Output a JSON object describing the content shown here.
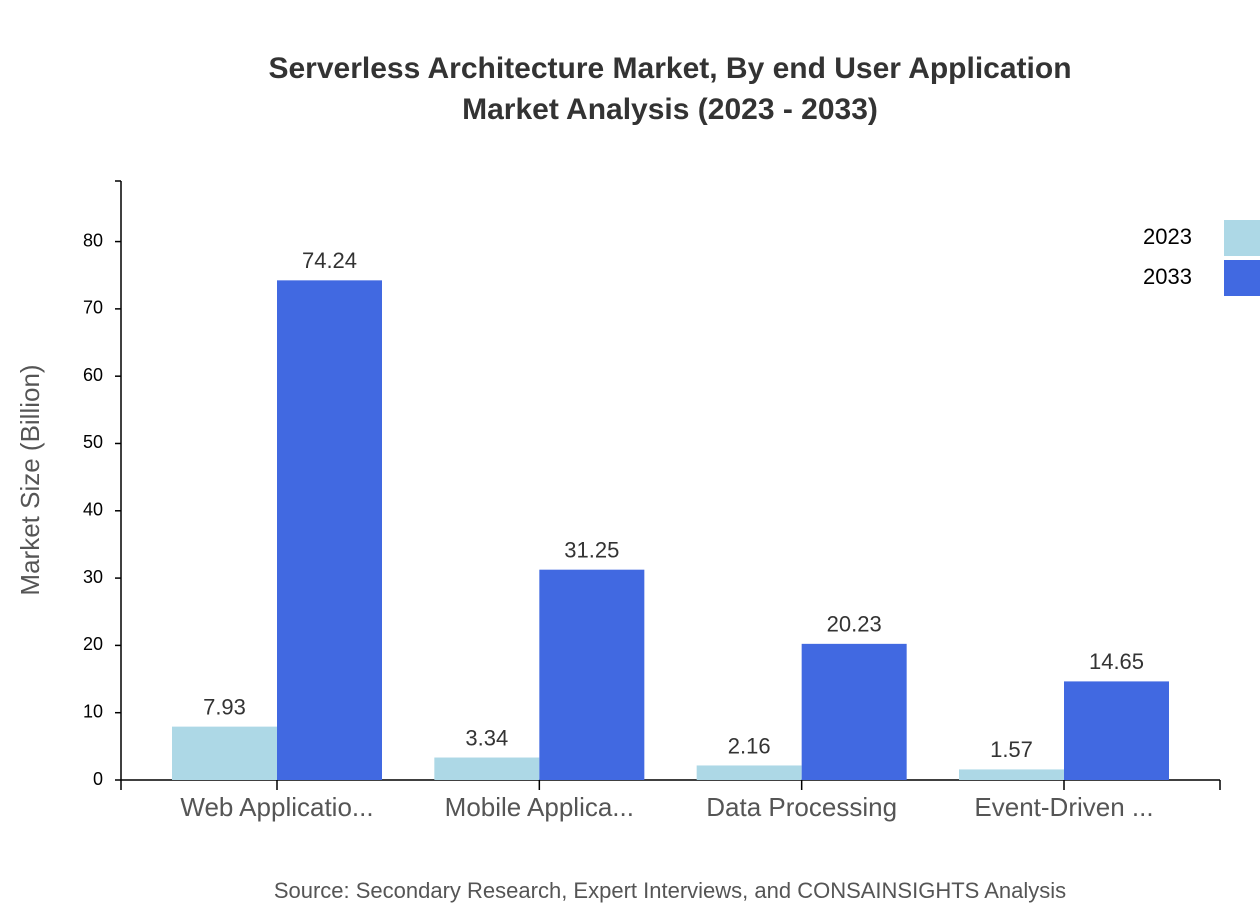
{
  "chart_data": {
    "type": "bar",
    "title": "Serverless Architecture Market, By end User Application Market Analysis (2023 - 2033)",
    "y_label": "Market Size (Billion)",
    "source": "Source: Secondary Research, Expert Interviews, and CONSAINSIGHTS Analysis",
    "categories": [
      "Web Applicatio...",
      "Mobile Applica...",
      "Data Processing",
      "Event-Driven ..."
    ],
    "series": [
      {
        "name": "2023",
        "color": "#add8e6",
        "values": [
          7.93,
          3.34,
          2.16,
          1.57
        ]
      },
      {
        "name": "2033",
        "color": "#4169e1",
        "values": [
          74.24,
          31.25,
          20.23,
          14.65
        ]
      }
    ],
    "ylim": [
      0,
      89
    ],
    "yticks": [
      0,
      10,
      20,
      30,
      40,
      50,
      60,
      70,
      80
    ],
    "legend": "top-right",
    "grid": false
  }
}
